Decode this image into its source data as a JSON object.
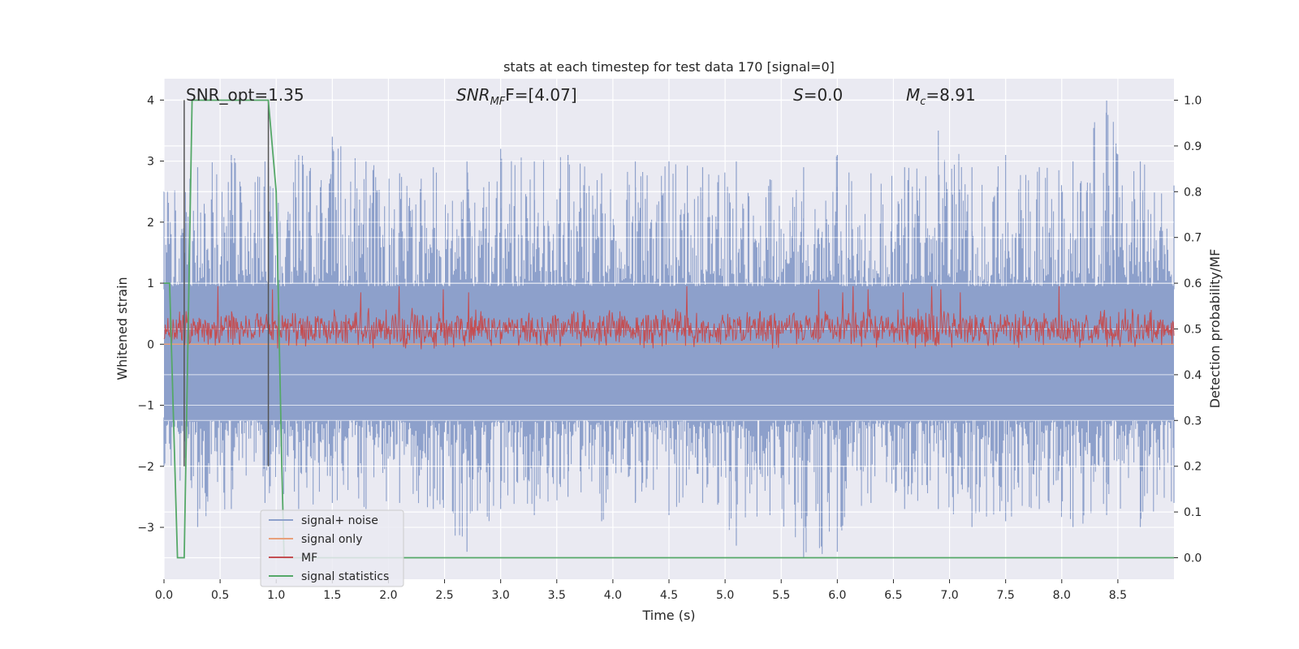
{
  "chart_data": {
    "type": "line",
    "title": "stats at each timestep for test data 170 [signal=0]",
    "xlabel": "Time (s)",
    "ylabel": "Whitened strain",
    "y2label": "Detection probability/MF",
    "xlim": [
      0,
      9.0
    ],
    "ylim": [
      -3.85,
      4.35
    ],
    "y2lim": [
      -0.047,
      1.047
    ],
    "xticks": [
      "0.0",
      "0.5",
      "1.0",
      "1.5",
      "2.0",
      "2.5",
      "3.0",
      "3.5",
      "4.0",
      "4.5",
      "5.0",
      "5.5",
      "6.0",
      "6.5",
      "7.0",
      "7.5",
      "8.0",
      "8.5"
    ],
    "xtick_values": [
      0,
      0.5,
      1,
      1.5,
      2,
      2.5,
      3,
      3.5,
      4,
      4.5,
      5,
      5.5,
      6,
      6.5,
      7,
      7.5,
      8,
      8.5
    ],
    "yticks": [
      "−3",
      "−2",
      "−1",
      "0",
      "1",
      "2",
      "3",
      "4"
    ],
    "ytick_values": [
      -3,
      -2,
      -1,
      0,
      1,
      2,
      3,
      4
    ],
    "y2ticks": [
      "0.0",
      "0.1",
      "0.2",
      "0.3",
      "0.4",
      "0.5",
      "0.6",
      "0.7",
      "0.8",
      "0.9",
      "1.0"
    ],
    "y2tick_values": [
      0,
      0.1,
      0.2,
      0.3,
      0.4,
      0.5,
      0.6,
      0.7,
      0.8,
      0.9,
      1.0
    ],
    "grid": true,
    "legend_position": "lower-left",
    "annotations": [
      {
        "name": "snr-opt",
        "text": "SNR_opt=1.35"
      },
      {
        "name": "snr-mf",
        "text": "SNR",
        "sub": "MF",
        "rest": "F=[4.07]"
      },
      {
        "name": "s-value",
        "text": "S",
        "rest": "=0.0"
      },
      {
        "name": "chirp-mass",
        "text": "M",
        "sub": "c",
        "rest": "=8.91"
      }
    ],
    "vertical_markers_x": [
      0.18,
      0.93
    ],
    "series": [
      {
        "name": "signal+ noise",
        "color": "#8da0cb",
        "axis": "left",
        "envelope": {
          "x": [
            0,
            0.3,
            0.6,
            0.9,
            1.2,
            1.5,
            1.8,
            2.1,
            2.4,
            2.7,
            3.0,
            3.3,
            3.6,
            3.9,
            4.2,
            4.5,
            4.8,
            5.1,
            5.4,
            5.7,
            6.0,
            6.3,
            6.6,
            6.9,
            7.2,
            7.5,
            7.8,
            8.1,
            8.4,
            8.7,
            9.0
          ],
          "upper": [
            2.5,
            2.9,
            3.1,
            3.0,
            3.1,
            3.4,
            3.0,
            2.8,
            2.9,
            3.0,
            3.2,
            3.0,
            3.1,
            2.8,
            3.0,
            3.0,
            2.9,
            3.0,
            2.7,
            2.9,
            3.1,
            2.8,
            2.9,
            3.5,
            2.9,
            3.1,
            2.9,
            3.0,
            4.0,
            3.0,
            2.6
          ],
          "lower": [
            -2.0,
            -3.0,
            -2.7,
            -2.6,
            -2.7,
            -2.6,
            -2.7,
            -2.6,
            -2.7,
            -3.4,
            -2.7,
            -2.8,
            -2.5,
            -2.9,
            -2.6,
            -2.8,
            -2.6,
            -3.3,
            -2.8,
            -3.5,
            -3.4,
            -2.6,
            -2.7,
            -2.7,
            -3.0,
            -2.9,
            -2.7,
            -3.0,
            -2.8,
            -3.0,
            -2.6
          ]
        }
      },
      {
        "name": "signal only",
        "color": "#e8a07a",
        "axis": "left",
        "x": [
          0,
          9.0
        ],
        "y": [
          0.0,
          0.0
        ]
      },
      {
        "name": "MF",
        "color": "#c44e52",
        "axis": "left",
        "band": {
          "center": 0.25,
          "halfwidth": 0.35,
          "peaks": [
            0.95,
            0.9,
            0.85
          ]
        }
      },
      {
        "name": "signal statistics",
        "color": "#55a868",
        "axis": "right",
        "x": [
          0,
          0.05,
          0.12,
          0.18,
          0.25,
          0.93,
          1.0,
          1.05,
          1.07,
          1.5,
          9.0
        ],
        "y": [
          0.6,
          0.6,
          0.0,
          0.0,
          1.0,
          1.0,
          0.8,
          0.2,
          0.0,
          0.0,
          0.0
        ]
      }
    ]
  }
}
